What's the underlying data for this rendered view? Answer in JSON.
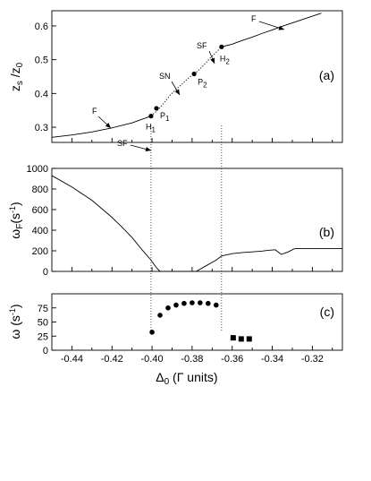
{
  "chart_data": [
    {
      "type": "line",
      "panel_label": "(a)",
      "ylabel": "z_s / z_0",
      "xlim": [
        -0.45,
        -0.305
      ],
      "ylim": [
        0.255,
        0.645
      ],
      "yticks": [
        "0.3",
        "0.4",
        "0.5",
        "0.6"
      ],
      "series": [
        {
          "style": "solid",
          "x": [
            -0.45,
            -0.44,
            -0.43,
            -0.42,
            -0.41,
            -0.4005
          ],
          "y": [
            0.27,
            0.277,
            0.286,
            0.298,
            0.313,
            0.333
          ]
        },
        {
          "style": "dotted",
          "x": [
            -0.4005,
            -0.397,
            -0.394,
            -0.391,
            -0.388,
            -0.385,
            -0.382,
            -0.379
          ],
          "y": [
            0.333,
            0.352,
            0.372,
            0.395,
            0.412,
            0.428,
            0.445,
            0.458
          ]
        },
        {
          "style": "dotted",
          "x": [
            -0.379,
            -0.3765,
            -0.374,
            -0.371,
            -0.368,
            -0.3653
          ],
          "y": [
            0.458,
            0.47,
            0.485,
            0.505,
            0.522,
            0.538
          ]
        },
        {
          "style": "solid",
          "x": [
            -0.3653,
            -0.36,
            -0.355,
            -0.35,
            -0.345,
            -0.34,
            -0.335,
            -0.33,
            -0.325,
            -0.32,
            -0.3155
          ],
          "y": [
            0.538,
            0.546,
            0.557,
            0.567,
            0.578,
            0.588,
            0.599,
            0.609,
            0.619,
            0.629,
            0.638
          ]
        }
      ],
      "points": [
        {
          "name": "H1",
          "x": -0.4005,
          "y": 0.333
        },
        {
          "name": "P1",
          "x": -0.3978,
          "y": 0.356
        },
        {
          "name": "P2",
          "x": -0.379,
          "y": 0.458
        },
        {
          "name": "H2",
          "x": -0.3653,
          "y": 0.538
        }
      ],
      "annotations": [
        "F",
        "SF",
        "SN",
        "SF",
        "F",
        "H",
        "P",
        "P",
        "H"
      ]
    },
    {
      "type": "line",
      "panel_label": "(b)",
      "ylabel": "ω_F (s⁻¹)",
      "xlim": [
        -0.45,
        -0.305
      ],
      "ylim": [
        0,
        1000
      ],
      "yticks": [
        "0",
        "200",
        "400",
        "600",
        "800",
        "1000"
      ],
      "series": [
        {
          "style": "solid",
          "x": [
            -0.45,
            -0.44,
            -0.43,
            -0.42,
            -0.415,
            -0.41,
            -0.405,
            -0.4005,
            -0.398,
            -0.396
          ],
          "y": [
            930,
            820,
            690,
            525,
            430,
            330,
            210,
            110,
            40,
            0
          ]
        },
        {
          "style": "solid",
          "x": [
            -0.396,
            -0.378
          ],
          "y": [
            0,
            0
          ]
        },
        {
          "style": "solid",
          "x": [
            -0.378,
            -0.373,
            -0.368,
            -0.3653,
            -0.36,
            -0.355,
            -0.35,
            -0.345,
            -0.342,
            -0.3385,
            -0.3355,
            -0.332,
            -0.329,
            -0.326,
            -0.32,
            -0.31,
            -0.305
          ],
          "y": [
            0,
            55,
            110,
            150,
            172,
            183,
            190,
            197,
            205,
            210,
            165,
            190,
            220,
            222,
            222,
            222,
            222
          ]
        }
      ]
    },
    {
      "type": "scatter",
      "panel_label": "(c)",
      "ylabel": "ω (s⁻¹)",
      "xlabel": "Δ0 (Γ units)",
      "xlim": [
        -0.45,
        -0.305
      ],
      "ylim": [
        0,
        100
      ],
      "xticks": [
        "-0.44",
        "-0.42",
        "-0.40",
        "-0.38",
        "-0.36",
        "-0.34",
        "-0.32"
      ],
      "yticks": [
        "0",
        "25",
        "50",
        "75"
      ],
      "series": [
        {
          "marker": "circle",
          "x": [
            -0.4,
            -0.396,
            -0.392,
            -0.388,
            -0.384,
            -0.38,
            -0.376,
            -0.372,
            -0.368
          ],
          "y": [
            32,
            62,
            75,
            80,
            83,
            84,
            84,
            83,
            80
          ]
        },
        {
          "marker": "square",
          "x": [
            -0.3595,
            -0.3555,
            -0.3515
          ],
          "y": [
            22,
            20,
            20
          ]
        }
      ]
    }
  ]
}
